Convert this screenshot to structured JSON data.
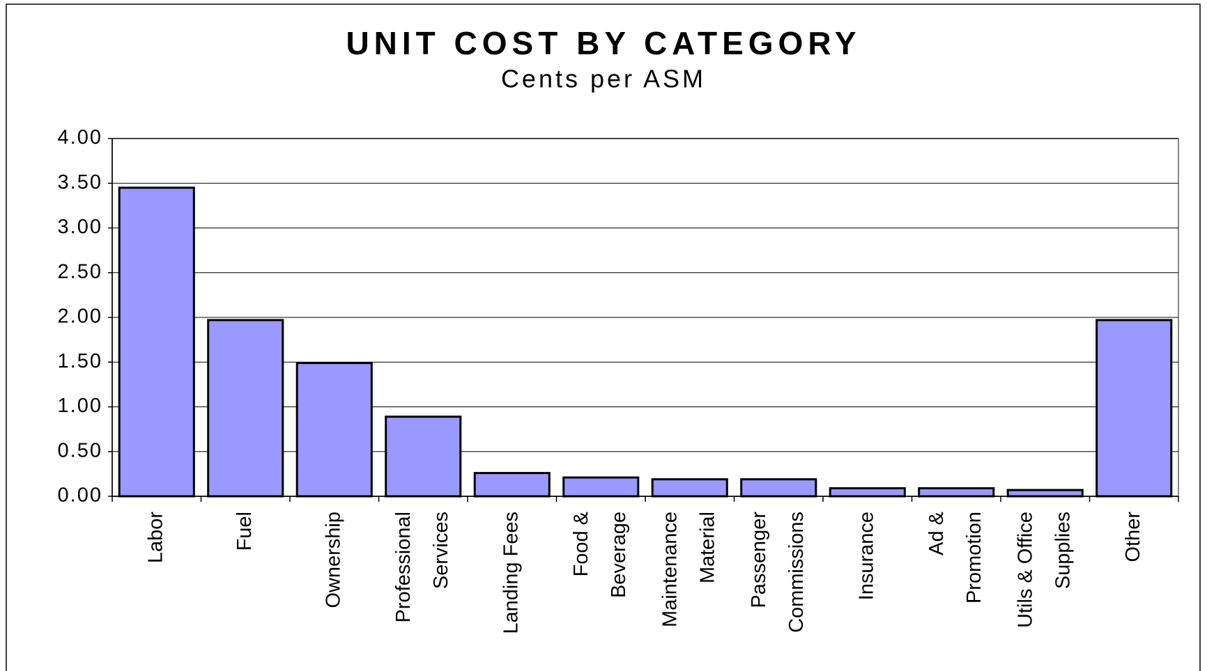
{
  "chart_data": {
    "type": "bar",
    "title": "UNIT COST BY CATEGORY",
    "subtitle": "Cents per ASM",
    "categories": [
      [
        "Labor"
      ],
      [
        "Fuel"
      ],
      [
        "Ownership"
      ],
      [
        "Professional",
        "Services"
      ],
      [
        "Landing Fees"
      ],
      [
        "Food &",
        "Beverage"
      ],
      [
        "Maintenance",
        "Material"
      ],
      [
        "Passenger",
        "Commissions"
      ],
      [
        "Insurance"
      ],
      [
        "Ad &",
        "Promotion"
      ],
      [
        "Utils & Office",
        "Supplies"
      ],
      [
        "Other"
      ]
    ],
    "values": [
      3.45,
      1.97,
      1.49,
      0.89,
      0.26,
      0.21,
      0.19,
      0.19,
      0.09,
      0.09,
      0.07,
      1.97
    ],
    "color": "#9999ff",
    "ylim": [
      0,
      4
    ],
    "yticks": [
      {
        "value": 0,
        "label": "0.00"
      },
      {
        "value": 0.5,
        "label": "0.50"
      },
      {
        "value": 1,
        "label": "1.00"
      },
      {
        "value": 1.5,
        "label": "1.50"
      },
      {
        "value": 2,
        "label": "2.00"
      },
      {
        "value": 2.5,
        "label": "2.50"
      },
      {
        "value": 3,
        "label": "3.00"
      },
      {
        "value": 3.5,
        "label": "3.50"
      },
      {
        "value": 4,
        "label": "4.00"
      }
    ],
    "grid": true
  }
}
